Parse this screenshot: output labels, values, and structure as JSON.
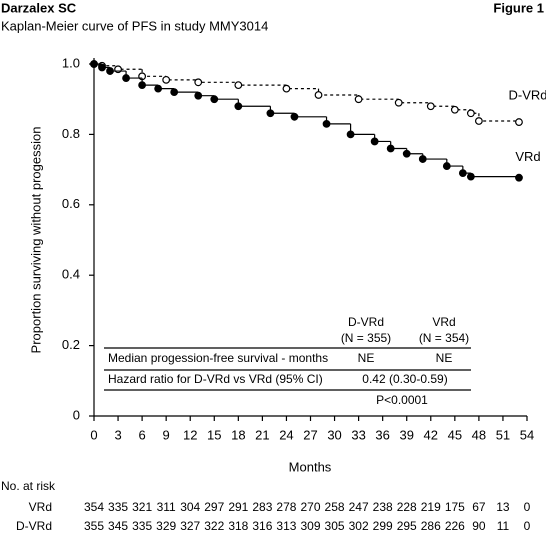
{
  "header": {
    "title": "Darzalex SC",
    "figure": "Figure 1",
    "subtitle": "Kaplan-Meier curve of PFS in study MMY3014"
  },
  "chart_data": {
    "type": "step",
    "x_label": "Months",
    "y_label": "Proportion surviving without progession",
    "xlim": [
      0,
      54
    ],
    "xticks": [
      0,
      3,
      6,
      9,
      12,
      15,
      18,
      21,
      24,
      27,
      30,
      33,
      36,
      39,
      42,
      45,
      48,
      51,
      54
    ],
    "ylim": [
      0,
      1
    ],
    "yticks": [
      0,
      0.2,
      0.4,
      0.6,
      0.8,
      {
        "value": 1,
        "label": "1.0"
      }
    ],
    "series": [
      {
        "name": "D-VRd",
        "color": "#000000",
        "line_style": "dashed",
        "marker": "open",
        "x": [
          0,
          1,
          3,
          6,
          9,
          13,
          18,
          24,
          28,
          33,
          38,
          42,
          45,
          47,
          48,
          53
        ],
        "values": [
          1,
          0.995,
          0.985,
          0.965,
          0.955,
          0.948,
          0.94,
          0.93,
          0.912,
          0.9,
          0.89,
          0.88,
          0.87,
          0.86,
          0.838,
          0.835
        ]
      },
      {
        "name": "VRd",
        "color": "#000000",
        "line_style": "solid",
        "marker": "filled",
        "x": [
          0,
          1,
          2,
          4,
          6,
          8,
          10,
          13,
          15,
          18,
          22,
          25,
          29,
          32,
          35,
          37,
          39,
          41,
          44,
          46,
          47,
          53
        ],
        "values": [
          1,
          0.99,
          0.98,
          0.96,
          0.94,
          0.93,
          0.92,
          0.91,
          0.9,
          0.88,
          0.86,
          0.85,
          0.83,
          0.8,
          0.78,
          0.76,
          0.745,
          0.73,
          0.71,
          0.69,
          0.68,
          0.677
        ]
      }
    ],
    "table": {
      "col_heads": [
        [
          "D-VRd",
          "(N = 355)"
        ],
        [
          "VRd",
          "(N = 354)"
        ]
      ],
      "rows": [
        [
          "Median progession-free survival - months",
          "NE",
          "NE"
        ],
        [
          "Hazard ratio for D-VRd vs VRd (95% CI)",
          "0.42 (0.30-0.59)"
        ],
        [
          "P<0.0001"
        ]
      ]
    },
    "at_risk": {
      "title": "No. at risk",
      "rows": [
        {
          "name": "VRd",
          "values": [
            354,
            335,
            321,
            311,
            304,
            297,
            291,
            283,
            278,
            270,
            258,
            247,
            238,
            228,
            219,
            175,
            67,
            13,
            0
          ]
        },
        {
          "name": "D-VRd",
          "values": [
            355,
            345,
            335,
            329,
            327,
            322,
            318,
            316,
            313,
            309,
            305,
            302,
            299,
            295,
            286,
            226,
            90,
            11,
            0
          ]
        }
      ]
    }
  }
}
